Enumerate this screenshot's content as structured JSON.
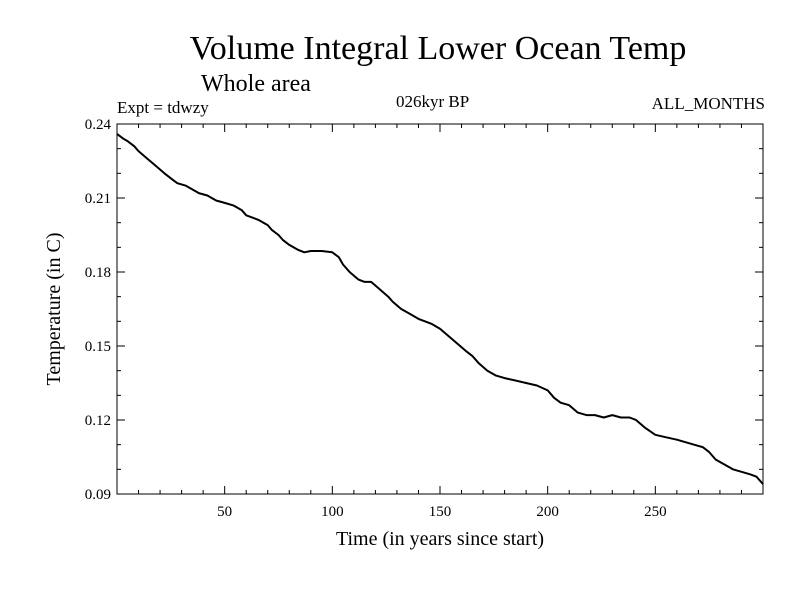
{
  "header": {
    "title": "Volume Integral Lower Ocean Temp",
    "subtitle": "Whole area",
    "expt": "Expt = tdwzy",
    "period": "026kyr BP",
    "months": "ALL_MONTHS"
  },
  "chart_data": {
    "type": "line",
    "title": "Volume Integral Lower Ocean Temp",
    "subtitle": "Whole area",
    "xlabel": "Time (in years since start)",
    "ylabel": "Temperature (in C)",
    "xlim": [
      0,
      300
    ],
    "ylim": [
      0.09,
      0.24
    ],
    "xticks": [
      50,
      100,
      150,
      200,
      250
    ],
    "xtick_labels": [
      "50",
      "100",
      "150",
      "200",
      "250"
    ],
    "yticks": [
      0.09,
      0.12,
      0.15,
      0.18,
      0.21,
      0.24
    ],
    "ytick_labels": [
      "0.09",
      "0.12",
      "0.15",
      "0.18",
      "0.21",
      "0.24"
    ],
    "line_color": "#000000",
    "series": [
      {
        "x": [
          0,
          3,
          5,
          8,
          10,
          14,
          18,
          22,
          25,
          28,
          32,
          36,
          38,
          42,
          46,
          50,
          54,
          58,
          60,
          63,
          66,
          70,
          72,
          75,
          77,
          80,
          84,
          87,
          90,
          95,
          100,
          103,
          105,
          108,
          112,
          115,
          118,
          122,
          126,
          128,
          132,
          136,
          140,
          143,
          146,
          150,
          154,
          158,
          162,
          165,
          168,
          172,
          176,
          180,
          185,
          190,
          195,
          200,
          203,
          206,
          210,
          214,
          218,
          222,
          226,
          230,
          234,
          238,
          241,
          245,
          250,
          255,
          260,
          264,
          268,
          272,
          275,
          278,
          282,
          286,
          290,
          294,
          297,
          300
        ],
        "y": [
          0.236,
          0.234,
          0.233,
          0.231,
          0.229,
          0.226,
          0.223,
          0.22,
          0.218,
          0.216,
          0.215,
          0.213,
          0.212,
          0.211,
          0.209,
          0.208,
          0.207,
          0.205,
          0.203,
          0.202,
          0.201,
          0.199,
          0.197,
          0.195,
          0.193,
          0.191,
          0.189,
          0.188,
          0.1885,
          0.1885,
          0.188,
          0.186,
          0.183,
          0.18,
          0.177,
          0.176,
          0.176,
          0.173,
          0.17,
          0.168,
          0.165,
          0.163,
          0.161,
          0.16,
          0.159,
          0.157,
          0.154,
          0.151,
          0.148,
          0.146,
          0.143,
          0.14,
          0.138,
          0.137,
          0.136,
          0.135,
          0.134,
          0.132,
          0.129,
          0.127,
          0.126,
          0.123,
          0.122,
          0.122,
          0.121,
          0.122,
          0.121,
          0.121,
          0.12,
          0.117,
          0.114,
          0.113,
          0.112,
          0.111,
          0.11,
          0.109,
          0.107,
          0.104,
          0.102,
          0.1,
          0.099,
          0.098,
          0.097,
          0.094
        ]
      }
    ]
  }
}
